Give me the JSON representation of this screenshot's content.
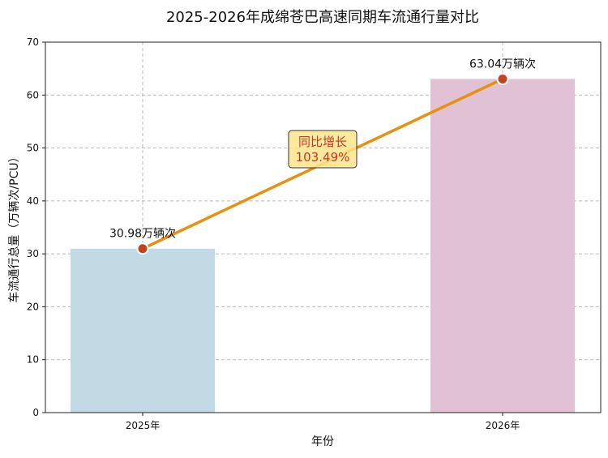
{
  "chart_data": {
    "type": "bar",
    "title": "2025-2026年成绵苍巴高速同期车流通行量对比",
    "xlabel": "年份",
    "ylabel": "车流通行总量（万辆次/PCU）",
    "categories": [
      "2025年",
      "2026年"
    ],
    "values": [
      30.98,
      63.04
    ],
    "data_labels": [
      "30.98万辆次",
      "63.04万辆次"
    ],
    "bar_colors": [
      "#c1dae4",
      "#e1c2d4"
    ],
    "line_overlay": {
      "color": "#e8900f",
      "marker_color": "#c5421f",
      "values": [
        30.98,
        63.04
      ]
    },
    "annotation": {
      "line1": "同比增长",
      "line2": "103.49%",
      "text_color": "#c0392b",
      "box_color": "#fde58c"
    },
    "ylim": [
      0,
      70
    ],
    "yticks": [
      0,
      10,
      20,
      30,
      40,
      50,
      60,
      70
    ],
    "grid": true
  }
}
